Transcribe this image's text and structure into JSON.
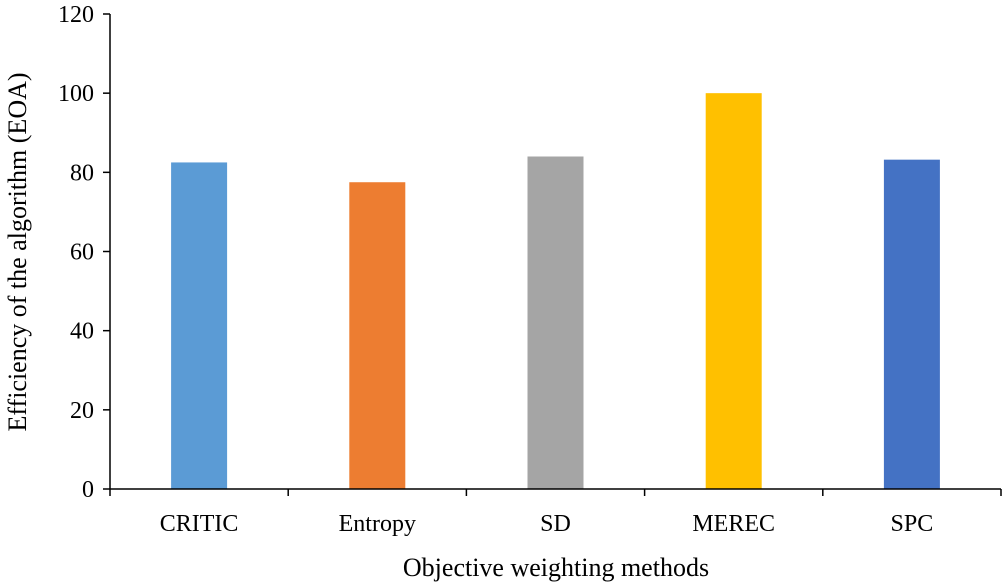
{
  "chart_data": {
    "type": "bar",
    "title": "",
    "xlabel": "Objective weighting methods",
    "ylabel": "Efficiency of the algorithm (EOA)",
    "categories": [
      "CRITIC",
      "Entropy",
      "SD",
      "MEREC",
      "SPC"
    ],
    "values": [
      82.5,
      77.5,
      84,
      100,
      83.2
    ],
    "colors": [
      "#5B9BD5",
      "#ED7D31",
      "#A5A5A5",
      "#FFC000",
      "#4472C4"
    ],
    "ylim": [
      0,
      120
    ],
    "yticks": [
      0,
      20,
      40,
      60,
      80,
      100,
      120
    ],
    "grid": false,
    "legend": "none"
  }
}
